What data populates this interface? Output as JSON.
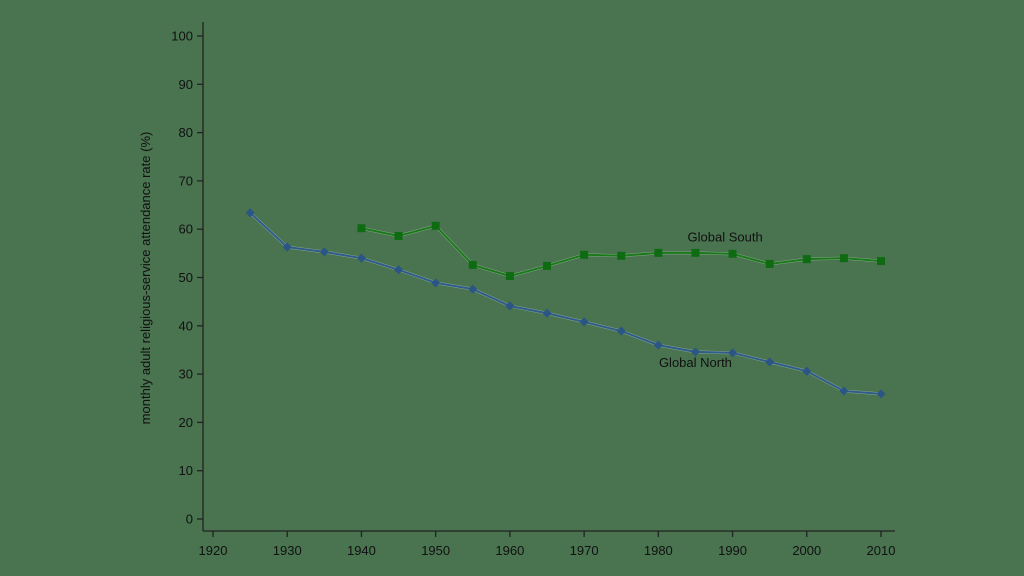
{
  "chart_data": {
    "type": "line",
    "title": "",
    "xlabel": "",
    "ylabel": "monthly adult religious-service attendance rate (%)",
    "xlim": [
      1918,
      2012
    ],
    "ylim": [
      0,
      100
    ],
    "xticks": [
      1920,
      1930,
      1940,
      1950,
      1960,
      1970,
      1980,
      1990,
      2000,
      2010
    ],
    "yticks": [
      0,
      10,
      20,
      30,
      40,
      50,
      60,
      70,
      80,
      90,
      100
    ],
    "grid": false,
    "legend": "inline labels",
    "series": [
      {
        "name": "Global North",
        "color": "#2e5d8c",
        "marker": "diamond",
        "label_pos": {
          "x": 1985,
          "y": 31.5
        },
        "x": [
          1925,
          1930,
          1935,
          1940,
          1945,
          1950,
          1955,
          1960,
          1965,
          1970,
          1975,
          1980,
          1985,
          1990,
          1995,
          2000,
          2005,
          2010
        ],
        "values": [
          63.4,
          56.3,
          55.3,
          54.0,
          51.6,
          48.9,
          47.6,
          44.1,
          42.6,
          40.8,
          38.9,
          36.0,
          34.6,
          34.4,
          32.5,
          30.6,
          26.5,
          25.9
        ]
      },
      {
        "name": "Global South",
        "color": "#1a7a1a",
        "marker": "square",
        "label_pos": {
          "x": 1989,
          "y": 57.5
        },
        "x": [
          1940,
          1945,
          1950,
          1955,
          1960,
          1965,
          1970,
          1975,
          1980,
          1985,
          1990,
          1995,
          2000,
          2005,
          2010
        ],
        "values": [
          60.2,
          58.6,
          60.7,
          52.6,
          50.3,
          52.4,
          54.7,
          54.5,
          55.1,
          55.1,
          54.9,
          52.8,
          53.8,
          54.0,
          53.4
        ]
      }
    ]
  }
}
